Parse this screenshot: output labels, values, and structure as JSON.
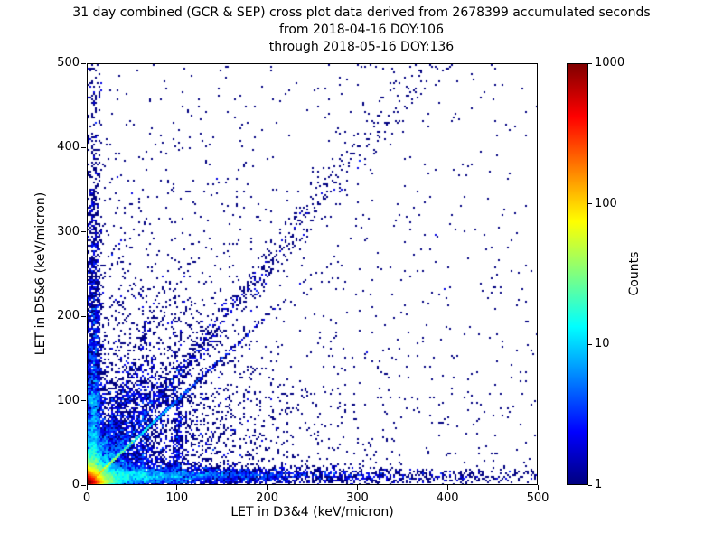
{
  "figure": {
    "background": "#ffffff",
    "text_color": "#000000"
  },
  "chart_data": {
    "type": "scatter",
    "title_lines": [
      "31 day combined (GCR & SEP) cross plot data derived from 2678399 accumulated seconds",
      "from 2018-04-16 DOY:106",
      "through 2018-05-16 DOY:136"
    ],
    "xlabel": "LET in D3&4 (keV/micron)",
    "ylabel": "LET in D5&6 (keV/micron)",
    "xlim": [
      0,
      500
    ],
    "ylim": [
      0,
      500
    ],
    "xticks": [
      0,
      100,
      200,
      300,
      400,
      500
    ],
    "yticks": [
      0,
      100,
      200,
      300,
      400,
      500
    ],
    "grid": false,
    "legend": "none",
    "colorbar": {
      "label": "Counts",
      "scale": "log",
      "range": [
        1,
        1000
      ],
      "ticks": [
        1,
        10,
        100,
        1000
      ],
      "colormap": "jet",
      "jet_stops": [
        {
          "t": 0.0,
          "c": "#000080"
        },
        {
          "t": 0.125,
          "c": "#0000ff"
        },
        {
          "t": 0.375,
          "c": "#00ffff"
        },
        {
          "t": 0.625,
          "c": "#ffff00"
        },
        {
          "t": 0.875,
          "c": "#ff0000"
        },
        {
          "t": 1.0,
          "c": "#800000"
        }
      ]
    },
    "point_model": {
      "seed": 20180416,
      "comment": "Density features of the cross plot: intense hotspot at origin (red/yellow), cyan-green bands along both axes and the unit diagonal, a broad sparse diagonal band reaching the top, faint fan streaks from origin, and sparse single-count (dark blue) background points.",
      "clusters": [
        {
          "kind": "exp2d",
          "n": 15000,
          "sx": 5,
          "sy": 5
        },
        {
          "kind": "exp2d",
          "n": 5200,
          "sx": 16,
          "sy": 16
        },
        {
          "kind": "exp2d",
          "n": 2600,
          "sx": 55,
          "sy": 55
        },
        {
          "kind": "exp2d",
          "n": 1400,
          "sx": 120,
          "sy": 120
        },
        {
          "kind": "band-x",
          "n": 4200,
          "y_mean": 10,
          "y_sigma": 5,
          "x_scale": 110
        },
        {
          "kind": "band-x",
          "n": 500,
          "y_mean": 10,
          "y_sigma": 4,
          "x_scale": 400
        },
        {
          "kind": "band-x",
          "n": 260,
          "y_mean": 103,
          "y_sigma": 4,
          "x_scale": 70
        },
        {
          "kind": "band-y",
          "n": 2800,
          "x_mean": 7,
          "x_sigma": 4,
          "y_scale": 100
        },
        {
          "kind": "band-y",
          "n": 500,
          "x_mean": 7,
          "x_sigma": 4,
          "y_scale": 380
        },
        {
          "kind": "band-y",
          "n": 300,
          "x_mean": 100,
          "x_sigma": 4,
          "y_scale": 55
        },
        {
          "kind": "band-y",
          "n": 220,
          "x_mean": 62,
          "x_sigma": 3,
          "y_scale": 70
        },
        {
          "kind": "diag",
          "n": 2200,
          "slope": 1.0,
          "r_scale": 40,
          "jitter": 2
        },
        {
          "kind": "diag",
          "n": 900,
          "slope": 1.3,
          "r_scale": 170,
          "jitter": 14
        },
        {
          "kind": "diag",
          "n": 260,
          "slope": 1.35,
          "r_scale": 420,
          "jitter": 20
        },
        {
          "kind": "fan",
          "n": 1600,
          "slope_min": 0.35,
          "slope_max": 3.0,
          "r_scale": 80,
          "jitter": 5
        },
        {
          "kind": "uniform",
          "n": 650
        }
      ]
    }
  }
}
